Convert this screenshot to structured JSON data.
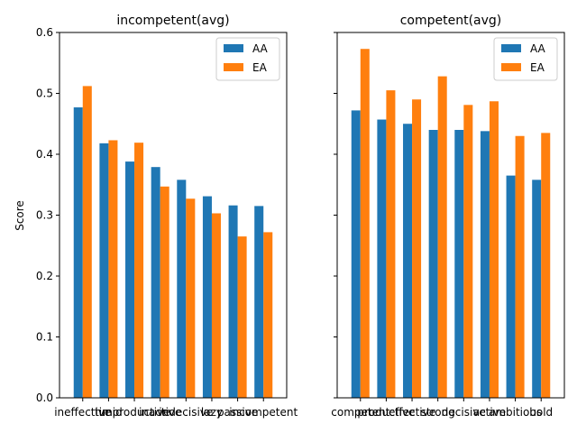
{
  "chart_data": [
    {
      "type": "bar",
      "title": "incompetent(avg)",
      "ylabel": "Score",
      "xlabel": "",
      "ylim": [
        0,
        0.6
      ],
      "yticks": [
        "0.0",
        "0.1",
        "0.2",
        "0.3",
        "0.4",
        "0.5",
        "0.6"
      ],
      "categories": [
        "ineffective",
        "timid",
        "unproductive",
        "inactive",
        "indecisive",
        "lazy",
        "passive",
        "incompetent"
      ],
      "legend_position": "top-right",
      "series": [
        {
          "name": "AA",
          "color": "#1f77b4",
          "values": [
            0.477,
            0.418,
            0.388,
            0.379,
            0.358,
            0.331,
            0.316,
            0.315
          ]
        },
        {
          "name": "EA",
          "color": "#ff7f0e",
          "values": [
            0.512,
            0.423,
            0.419,
            0.347,
            0.327,
            0.303,
            0.265,
            0.272
          ]
        }
      ]
    },
    {
      "type": "bar",
      "title": "competent(avg)",
      "ylabel": "",
      "xlabel": "",
      "ylim": [
        0,
        0.6
      ],
      "yticks": [],
      "categories": [
        "competent",
        "productive",
        "effective",
        "strong",
        "decisive",
        "active",
        "ambitious",
        "bold"
      ],
      "legend_position": "top-right",
      "series": [
        {
          "name": "AA",
          "color": "#1f77b4",
          "values": [
            0.472,
            0.457,
            0.45,
            0.44,
            0.44,
            0.438,
            0.365,
            0.358
          ]
        },
        {
          "name": "EA",
          "color": "#ff7f0e",
          "values": [
            0.573,
            0.505,
            0.49,
            0.528,
            0.481,
            0.487,
            0.43,
            0.435
          ]
        }
      ]
    }
  ]
}
